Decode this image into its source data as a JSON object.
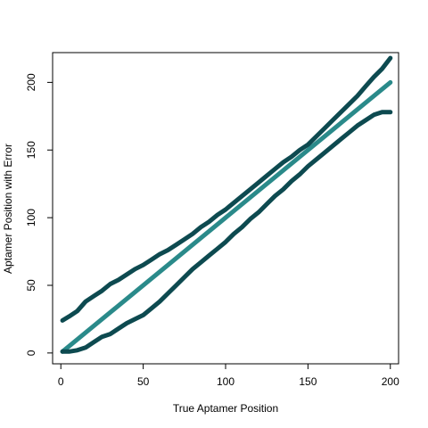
{
  "chart_data": {
    "type": "line",
    "title": "",
    "xlabel": "True Aptamer Position",
    "ylabel": "Aptamer Position with Error",
    "xlim": [
      -5,
      205
    ],
    "ylim": [
      -8,
      222
    ],
    "xticks": [
      0,
      50,
      100,
      150,
      200
    ],
    "yticks": [
      0,
      50,
      100,
      150,
      200
    ],
    "xtick_labels": [
      "0",
      "50",
      "100",
      "150",
      "200"
    ],
    "ytick_labels": [
      "0",
      "50",
      "100",
      "150",
      "200"
    ],
    "grid": false,
    "legend": "none",
    "series": [
      {
        "color": "#2a8a8a",
        "x": [
          1,
          200
        ],
        "y": [
          1,
          200
        ]
      },
      {
        "color": "#0d4a50",
        "x": [
          1,
          5,
          10,
          15,
          20,
          25,
          30,
          35,
          40,
          45,
          50,
          55,
          60,
          65,
          70,
          75,
          80,
          85,
          90,
          95,
          100,
          105,
          110,
          115,
          120,
          125,
          130,
          135,
          140,
          145,
          150,
          155,
          160,
          165,
          170,
          175,
          180,
          185,
          190,
          195,
          200
        ],
        "y": [
          24,
          27,
          31,
          38,
          42,
          46,
          51,
          54,
          58,
          62,
          65,
          69,
          73,
          76,
          80,
          84,
          88,
          93,
          97,
          102,
          106,
          111,
          116,
          121,
          126,
          131,
          136,
          141,
          145,
          150,
          154,
          160,
          166,
          172,
          178,
          184,
          190,
          197,
          204,
          210,
          218
        ]
      },
      {
        "color": "#0d4a50",
        "x": [
          1,
          5,
          10,
          15,
          20,
          25,
          30,
          35,
          40,
          45,
          50,
          55,
          60,
          65,
          70,
          75,
          80,
          85,
          90,
          95,
          100,
          105,
          110,
          115,
          120,
          125,
          130,
          135,
          140,
          145,
          150,
          155,
          160,
          165,
          170,
          175,
          180,
          185,
          190,
          195,
          200
        ],
        "y": [
          1,
          1,
          2,
          4,
          8,
          12,
          14,
          18,
          22,
          25,
          28,
          33,
          38,
          44,
          50,
          56,
          62,
          67,
          72,
          77,
          82,
          88,
          93,
          99,
          104,
          110,
          116,
          121,
          127,
          132,
          138,
          143,
          148,
          153,
          158,
          163,
          168,
          172,
          176,
          178,
          178
        ]
      }
    ]
  }
}
